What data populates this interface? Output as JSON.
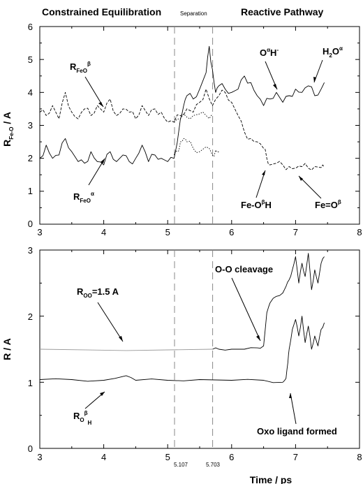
{
  "header": {
    "left": "Constrained Equilibration",
    "middle": "Separation",
    "right": "Reactive Pathway"
  },
  "chart_data": [
    {
      "type": "line",
      "panel": "top",
      "ylabel": "R / A",
      "ylabel_sub": "Fe-O",
      "xlim": [
        3,
        8
      ],
      "ylim": [
        0,
        6
      ],
      "xticks": [
        "3",
        "4",
        "5",
        "6",
        "7",
        "8"
      ],
      "yticks": [
        "0",
        "1",
        "2",
        "3",
        "4",
        "5",
        "6"
      ],
      "vlines": [
        5.107,
        5.703
      ],
      "series": [
        {
          "style": "solid",
          "x": [
            3.0,
            3.1,
            3.2,
            3.3,
            3.4,
            3.5,
            3.6,
            3.7,
            3.8,
            3.9,
            4.0,
            4.1,
            4.2,
            4.3,
            4.4,
            4.5,
            4.6,
            4.7,
            4.8,
            4.9,
            5.0,
            5.1,
            5.2,
            5.25,
            5.3,
            5.4,
            5.5,
            5.6,
            5.65,
            5.7,
            5.75,
            5.8,
            5.9,
            6.0,
            6.1,
            6.2,
            6.3,
            6.4,
            6.5,
            6.6,
            6.7,
            6.8,
            6.9,
            7.0,
            7.1,
            7.2,
            7.3,
            7.4,
            7.45
          ],
          "y": [
            2.0,
            2.4,
            2.0,
            2.1,
            2.6,
            2.2,
            1.9,
            1.85,
            2.2,
            1.9,
            1.8,
            2.2,
            1.9,
            2.1,
            1.9,
            2.0,
            2.4,
            1.9,
            2.1,
            2.0,
            1.9,
            2.0,
            3.2,
            3.6,
            3.9,
            3.8,
            4.1,
            4.6,
            5.4,
            4.7,
            4.0,
            4.2,
            4.1,
            4.0,
            4.1,
            4.5,
            4.3,
            3.9,
            3.6,
            3.8,
            4.0,
            3.7,
            3.9,
            4.1,
            4.0,
            4.2,
            3.9,
            4.1,
            4.3
          ]
        },
        {
          "style": "dashed",
          "x": [
            3.0,
            3.1,
            3.2,
            3.3,
            3.4,
            3.5,
            3.6,
            3.7,
            3.8,
            3.9,
            4.0,
            4.1,
            4.2,
            4.3,
            4.4,
            4.5,
            4.6,
            4.7,
            4.8,
            4.9,
            5.0,
            5.1,
            5.2,
            5.3,
            5.4,
            5.5,
            5.6,
            5.7,
            5.8,
            5.9,
            6.0,
            6.1,
            6.2,
            6.3,
            6.4,
            6.5,
            6.55,
            6.6,
            6.7,
            6.8,
            6.9,
            7.0,
            7.1,
            7.2,
            7.3,
            7.4,
            7.45
          ],
          "y": [
            3.4,
            3.3,
            3.6,
            3.2,
            4.0,
            3.4,
            3.2,
            3.5,
            3.3,
            3.6,
            3.4,
            3.8,
            3.3,
            3.5,
            3.4,
            3.2,
            3.6,
            3.3,
            3.5,
            3.4,
            3.1,
            3.1,
            3.3,
            3.5,
            3.4,
            3.7,
            4.1,
            3.6,
            3.9,
            4.0,
            3.7,
            3.3,
            2.8,
            2.6,
            2.5,
            2.3,
            2.0,
            1.8,
            1.85,
            1.8,
            1.75,
            1.7,
            1.75,
            1.7,
            1.75,
            1.72,
            1.72
          ]
        },
        {
          "style": "dotted",
          "x": [
            5.1,
            5.15,
            5.2,
            5.25,
            5.3,
            5.4,
            5.5,
            5.6,
            5.7,
            5.75,
            5.8
          ],
          "y": [
            2.1,
            2.2,
            2.5,
            2.6,
            2.5,
            2.3,
            2.2,
            2.35,
            2.1,
            2.25,
            2.2
          ]
        },
        {
          "style": "dotted",
          "x": [
            5.1,
            5.2,
            5.3,
            5.4,
            5.5,
            5.6,
            5.7
          ],
          "y": [
            3.1,
            3.2,
            3.25,
            3.3,
            3.35,
            3.3,
            3.35
          ]
        }
      ],
      "annotations": [
        {
          "base": "R",
          "sub": "FeO",
          "sup": "β"
        },
        {
          "base": "R",
          "sub": "FeO",
          "sup": "α"
        },
        {
          "base": "O",
          "sup": "α",
          "tail": "H",
          "tail_sup": "-"
        },
        {
          "base": "H",
          "sub": "2",
          "tail": "O",
          "tail_sup": "α"
        },
        {
          "base": "Fe-O",
          "sup": "β",
          "tail": "H"
        },
        {
          "base": "Fe=O",
          "sup": "β"
        }
      ]
    },
    {
      "type": "line",
      "panel": "bottom",
      "ylabel": "R / A",
      "xlabel": "Time / ps",
      "xlim": [
        3,
        8
      ],
      "ylim": [
        0,
        3
      ],
      "xticks": [
        "3",
        "4",
        "5",
        "6",
        "7",
        "8"
      ],
      "yticks": [
        "0",
        "1",
        "2",
        "3"
      ],
      "vline_labels": [
        "5.107",
        "5.703"
      ],
      "series": [
        {
          "style": "solid",
          "color": "#999999",
          "x": [
            3.0,
            5.703
          ],
          "y": [
            1.5,
            1.5
          ]
        },
        {
          "style": "solid",
          "x": [
            5.703,
            5.8,
            6.0,
            6.2,
            6.4,
            6.5,
            6.55,
            6.6,
            6.7,
            6.8,
            6.85,
            6.9,
            6.95,
            7.0,
            7.05,
            7.1,
            7.15,
            7.2,
            7.25,
            7.3,
            7.35,
            7.4,
            7.45
          ],
          "y": [
            1.5,
            1.5,
            1.5,
            1.5,
            1.52,
            1.55,
            2.05,
            2.2,
            2.3,
            2.35,
            2.45,
            2.55,
            2.7,
            2.9,
            2.5,
            2.8,
            2.6,
            2.95,
            2.4,
            2.7,
            2.5,
            2.8,
            2.9
          ]
        },
        {
          "style": "solid",
          "x": [
            3.0,
            3.5,
            4.0,
            4.35,
            4.5,
            5.0,
            5.5,
            6.0,
            6.5,
            6.8,
            6.85,
            6.88,
            6.9,
            6.95,
            7.0,
            7.05,
            7.1,
            7.15,
            7.2,
            7.25,
            7.3,
            7.35,
            7.4,
            7.45
          ],
          "y": [
            1.04,
            1.04,
            1.03,
            1.1,
            1.03,
            1.03,
            1.04,
            1.03,
            1.03,
            1.0,
            1.06,
            1.3,
            1.5,
            1.8,
            1.95,
            1.7,
            2.0,
            1.6,
            1.85,
            1.5,
            1.7,
            1.55,
            1.8,
            1.9
          ]
        }
      ],
      "annotations": [
        {
          "base": "R",
          "sub": "OO",
          "tail": "=1.5 A"
        },
        {
          "base": "O-O cleavage"
        },
        {
          "base": "R",
          "sub": "O",
          "sup": "β",
          "tail_sub": "H"
        },
        {
          "base": "Oxo ligand formed"
        }
      ]
    }
  ]
}
